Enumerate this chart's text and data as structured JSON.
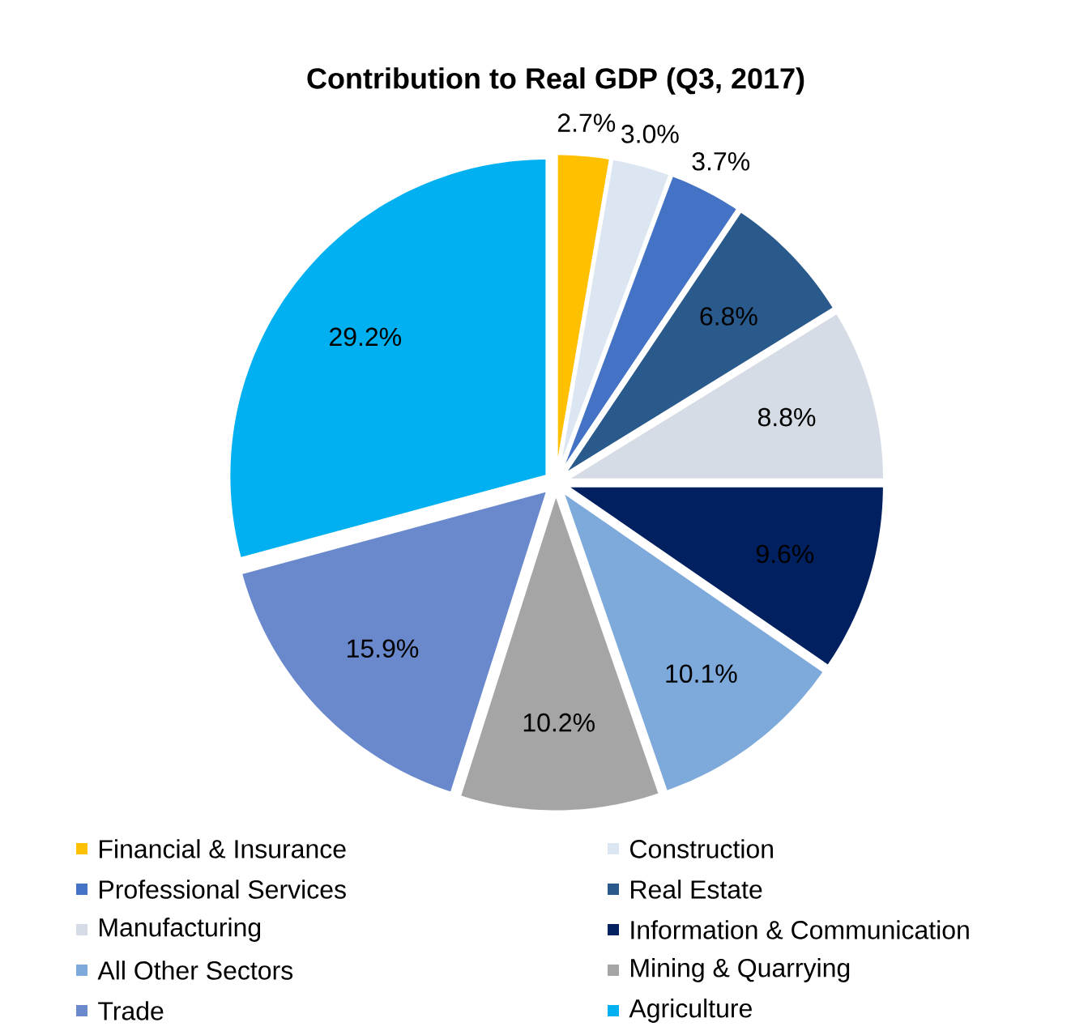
{
  "chart_data": {
    "type": "pie",
    "title": "Contribution to Real GDP (Q3, 2017)",
    "categories": [
      "Financial & Insurance",
      "Construction",
      "Professional Services",
      "Real Estate",
      "Manufacturing",
      "Information & Communication",
      "All Other Sectors",
      "Mining & Quarrying",
      "Trade",
      "Agriculture"
    ],
    "values": [
      2.7,
      3.0,
      3.7,
      6.8,
      8.8,
      9.6,
      10.1,
      10.2,
      15.9,
      29.2
    ],
    "value_labels": [
      "2.7%",
      "3.0%",
      "3.7%",
      "6.8%",
      "8.8%",
      "9.6%",
      "10.1%",
      "10.2%",
      "15.9%",
      "29.2%"
    ],
    "colors": [
      "#ffc000",
      "#dce6f2",
      "#4472c4",
      "#2a5a8c",
      "#d6dce5",
      "#002060",
      "#7eaadb",
      "#a5a5a5",
      "#6a89cc",
      "#00b0f0"
    ],
    "legend": "bottom"
  }
}
